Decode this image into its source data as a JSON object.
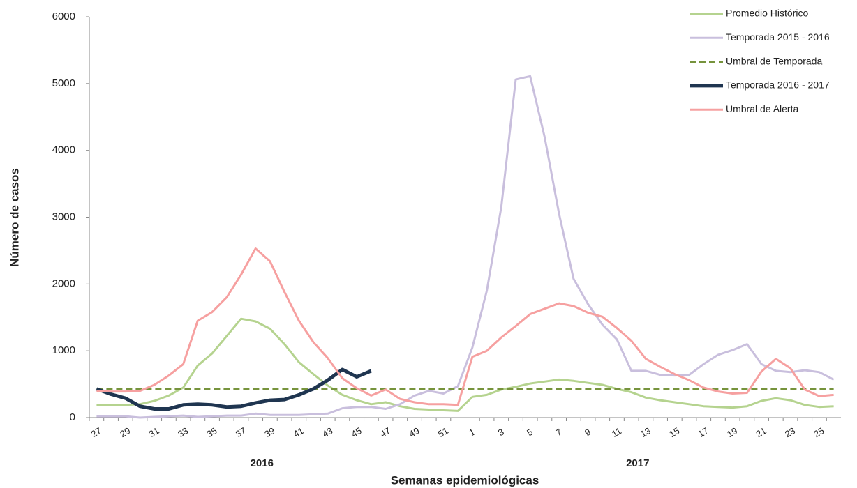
{
  "chart_data": {
    "type": "line",
    "categories": [
      "27",
      null,
      "29",
      null,
      "31",
      null,
      "33",
      null,
      "35",
      null,
      "37",
      null,
      "39",
      null,
      "41",
      null,
      "43",
      null,
      "45",
      null,
      "47",
      null,
      "49",
      null,
      "51",
      null,
      "1",
      null,
      "3",
      null,
      "5",
      null,
      "7",
      null,
      "9",
      null,
      "11",
      null,
      "13",
      null,
      "15",
      null,
      "17",
      null,
      "19",
      null,
      "21",
      null,
      "23",
      null,
      "25",
      null
    ],
    "groups": [
      "2016",
      "2017"
    ],
    "x_label": "Semanas epidemiológicas",
    "y_label": "Número de casos",
    "ylim": [
      0,
      6000
    ],
    "yticks": [
      0,
      1000,
      2000,
      3000,
      4000,
      5000,
      6000
    ],
    "legend": "top-right",
    "series": [
      {
        "name": "Promedio Histórico",
        "color": "#b5d38f",
        "style": "solid",
        "values": [
          190,
          190,
          190,
          200,
          250,
          330,
          450,
          780,
          960,
          1220,
          1480,
          1440,
          1330,
          1100,
          830,
          650,
          480,
          340,
          260,
          200,
          230,
          170,
          130,
          120,
          110,
          100,
          310,
          340,
          420,
          460,
          510,
          540,
          570,
          550,
          520,
          490,
          430,
          380,
          300,
          260,
          230,
          200,
          170,
          160,
          150,
          170,
          250,
          290,
          260,
          190,
          160,
          170
        ]
      },
      {
        "name": "Temporada 2015 - 2016",
        "color": "#c9bfdd",
        "style": "solid",
        "values": [
          20,
          20,
          20,
          0,
          10,
          20,
          30,
          10,
          20,
          30,
          30,
          60,
          40,
          40,
          40,
          50,
          60,
          140,
          160,
          160,
          130,
          200,
          330,
          400,
          360,
          470,
          1050,
          1900,
          3150,
          5060,
          5110,
          4200,
          3050,
          2080,
          1700,
          1390,
          1170,
          700,
          700,
          640,
          630,
          640,
          800,
          940,
          1010,
          1100,
          800,
          700,
          680,
          710,
          680,
          570
        ]
      },
      {
        "name": "Umbral de Temporada",
        "color": "#76933c",
        "style": "dashed",
        "values": [
          430,
          430,
          430,
          430,
          430,
          430,
          430,
          430,
          430,
          430,
          430,
          430,
          430,
          430,
          430,
          430,
          430,
          430,
          430,
          430,
          430,
          430,
          430,
          430,
          430,
          430,
          430,
          430,
          430,
          430,
          430,
          430,
          430,
          430,
          430,
          430,
          430,
          430,
          430,
          430,
          430,
          430,
          430,
          430,
          430,
          430,
          430,
          430,
          430,
          430,
          430,
          430
        ]
      },
      {
        "name": "Temporada 2016 - 2017",
        "color": "#1f3550",
        "style": "bold",
        "values": [
          430,
          350,
          290,
          170,
          130,
          130,
          190,
          200,
          190,
          160,
          170,
          220,
          260,
          270,
          340,
          430,
          560,
          720,
          610,
          700,
          null,
          null,
          null,
          null,
          null,
          null,
          null,
          null,
          null,
          null,
          null,
          null,
          null,
          null,
          null,
          null,
          null,
          null,
          null,
          null,
          null,
          null,
          null,
          null,
          null,
          null,
          null,
          null,
          null,
          null,
          null,
          null
        ]
      },
      {
        "name": "Umbral de Alerta",
        "color": "#f6a0a0",
        "style": "solid",
        "values": [
          400,
          390,
          390,
          400,
          490,
          630,
          800,
          1450,
          1580,
          1800,
          2140,
          2530,
          2340,
          1880,
          1450,
          1130,
          890,
          590,
          440,
          330,
          420,
          280,
          230,
          200,
          200,
          190,
          910,
          1000,
          1200,
          1370,
          1550,
          1630,
          1710,
          1670,
          1570,
          1510,
          1340,
          1150,
          880,
          760,
          650,
          560,
          450,
          390,
          360,
          370,
          690,
          880,
          740,
          420,
          320,
          340
        ]
      }
    ]
  }
}
